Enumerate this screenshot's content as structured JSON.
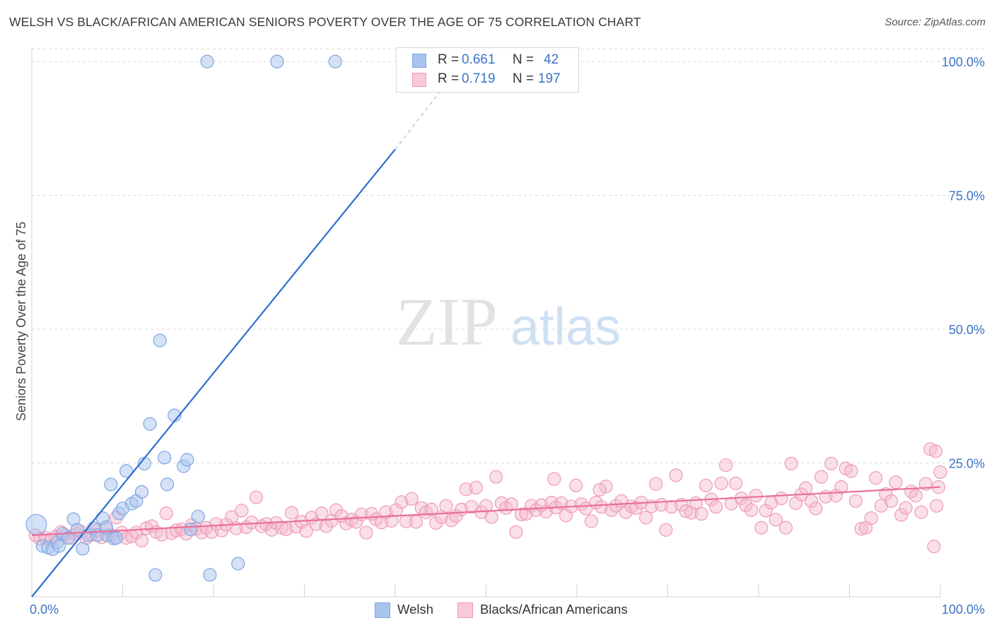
{
  "title": "WELSH VS BLACK/AFRICAN AMERICAN SENIORS POVERTY OVER THE AGE OF 75 CORRELATION CHART",
  "source": "Source: ZipAtlas.com",
  "watermark": {
    "zip": "ZIP",
    "atlas": "atlas"
  },
  "legend": {
    "welsh": {
      "r_label": "R =",
      "r_value": "0.661",
      "n_label": "N =",
      "n_value": "42"
    },
    "black": {
      "r_label": "R =",
      "r_value": "0.719",
      "n_label": "N =",
      "n_value": "197"
    }
  },
  "bottom_legend": {
    "welsh": "Welsh",
    "black": "Blacks/African Americans"
  },
  "colors": {
    "welsh_fill": "#a9c4ee",
    "welsh_stroke": "#7fa6e3",
    "welsh_line": "#2f6fd0",
    "black_fill": "#f5b8cb",
    "black_stroke": "#f09ab4",
    "black_line": "#e8709a",
    "tick_label": "#3b73c9",
    "grid": "#d9d9d9"
  },
  "chart_data": {
    "type": "scatter",
    "title": "WELSH VS BLACK/AFRICAN AMERICAN SENIORS POVERTY OVER THE AGE OF 75 CORRELATION CHART",
    "xlabel": "",
    "ylabel": "Seniors Poverty Over the Age of 75",
    "xlim": [
      0,
      100
    ],
    "ylim": [
      0,
      102
    ],
    "x_tick_labels": [
      "0.0%",
      "100.0%"
    ],
    "y_ticks": [
      25,
      50,
      75,
      100
    ],
    "y_tick_labels": [
      "25.0%",
      "50.0%",
      "75.0%",
      "100.0%"
    ],
    "grid": true,
    "series": [
      {
        "name": "Welsh",
        "R": 0.661,
        "N": 42,
        "trend": {
          "x0": 0,
          "y0": 0,
          "x1": 40,
          "y1": 83.6,
          "dashed_to_x": 45,
          "dashed_to_y": 94.5
        },
        "points": [
          [
            0.5,
            13.5,
            1.6
          ],
          [
            1.2,
            9.5,
            1
          ],
          [
            1.8,
            9.2,
            1
          ],
          [
            2.3,
            8.9,
            1
          ],
          [
            2.8,
            10.2,
            1
          ],
          [
            3.4,
            11.8,
            1
          ],
          [
            4.0,
            11.0,
            1
          ],
          [
            4.6,
            14.5,
            1
          ],
          [
            5.0,
            12.5,
            1
          ],
          [
            5.6,
            9.0,
            1
          ],
          [
            6.2,
            11.5,
            1
          ],
          [
            6.8,
            12.8,
            1
          ],
          [
            7.2,
            11.5,
            1
          ],
          [
            7.8,
            14.7,
            1
          ],
          [
            8.3,
            11.5,
            1
          ],
          [
            8.7,
            21.0,
            1
          ],
          [
            9.0,
            10.9,
            1
          ],
          [
            9.3,
            11.0,
            1
          ],
          [
            9.6,
            15.6,
            1
          ],
          [
            10.0,
            16.5,
            1
          ],
          [
            10.4,
            23.5,
            1
          ],
          [
            11.0,
            17.4,
            1
          ],
          [
            11.5,
            17.9,
            1
          ],
          [
            12.1,
            19.6,
            1
          ],
          [
            12.4,
            24.9,
            1
          ],
          [
            13.0,
            32.3,
            1
          ],
          [
            13.6,
            4.1,
            1
          ],
          [
            14.1,
            47.9,
            1
          ],
          [
            14.6,
            26.0,
            1
          ],
          [
            14.9,
            21.0,
            1
          ],
          [
            16.7,
            24.4,
            1
          ],
          [
            17.1,
            25.6,
            1
          ],
          [
            17.5,
            12.6,
            1
          ],
          [
            18.3,
            15.0,
            1
          ],
          [
            19.3,
            100,
            1
          ],
          [
            19.6,
            4.1,
            1
          ],
          [
            22.7,
            6.2,
            1
          ],
          [
            27.0,
            100,
            1
          ],
          [
            33.4,
            100,
            1
          ],
          [
            15.7,
            33.9,
            1
          ],
          [
            8.2,
            13.0,
            1
          ],
          [
            3.0,
            9.5,
            1
          ]
        ]
      },
      {
        "name": "Blacks/African Americans",
        "R": 0.719,
        "N": 197,
        "trend": {
          "x0": 0,
          "y0": 11.5,
          "x1": 100,
          "y1": 20.5
        },
        "points": [
          [
            0.4,
            11.5
          ],
          [
            0.9,
            10.8
          ],
          [
            1.5,
            11.0
          ],
          [
            2.1,
            10.6
          ],
          [
            2.6,
            11.2
          ],
          [
            3.2,
            12.1
          ],
          [
            3.7,
            11.5
          ],
          [
            4.3,
            11.0
          ],
          [
            4.9,
            11.8
          ],
          [
            5.4,
            12.2
          ],
          [
            6.0,
            11.0
          ],
          [
            6.6,
            11.6
          ],
          [
            7.1,
            12.4
          ],
          [
            7.7,
            11.1
          ],
          [
            8.2,
            12.7
          ],
          [
            8.8,
            11.5
          ],
          [
            9.3,
            14.8
          ],
          [
            9.9,
            12.0
          ],
          [
            10.4,
            11.0
          ],
          [
            11.0,
            11.3
          ],
          [
            11.5,
            12.0
          ],
          [
            12.1,
            10.5
          ],
          [
            12.6,
            12.8
          ],
          [
            13.2,
            13.2
          ],
          [
            13.7,
            12.1
          ],
          [
            14.3,
            11.6
          ],
          [
            14.8,
            15.6
          ],
          [
            15.4,
            11.9
          ],
          [
            15.9,
            12.4
          ],
          [
            16.5,
            12.6
          ],
          [
            17.0,
            11.8
          ],
          [
            17.6,
            13.4
          ],
          [
            18.1,
            12.7
          ],
          [
            18.7,
            12.0
          ],
          [
            19.2,
            12.9
          ],
          [
            19.8,
            12.1
          ],
          [
            20.3,
            13.6
          ],
          [
            20.9,
            12.4
          ],
          [
            21.4,
            13.5
          ],
          [
            22.0,
            14.9
          ],
          [
            22.5,
            12.8
          ],
          [
            23.1,
            16.1
          ],
          [
            23.6,
            13.0
          ],
          [
            24.2,
            13.9
          ],
          [
            24.7,
            18.6
          ],
          [
            25.3,
            13.2
          ],
          [
            25.8,
            13.6
          ],
          [
            26.4,
            12.5
          ],
          [
            26.9,
            13.8
          ],
          [
            27.5,
            12.9
          ],
          [
            28.0,
            12.6
          ],
          [
            28.6,
            15.7
          ],
          [
            29.1,
            13.1
          ],
          [
            29.7,
            14.0
          ],
          [
            30.2,
            12.3
          ],
          [
            30.8,
            14.8
          ],
          [
            31.3,
            13.6
          ],
          [
            31.9,
            15.6
          ],
          [
            32.4,
            13.2
          ],
          [
            33.0,
            14.2
          ],
          [
            33.5,
            16.2
          ],
          [
            34.1,
            15.1
          ],
          [
            34.6,
            13.7
          ],
          [
            35.2,
            14.4
          ],
          [
            35.7,
            14.0
          ],
          [
            36.3,
            15.4
          ],
          [
            36.8,
            12.0
          ],
          [
            37.4,
            15.5
          ],
          [
            37.9,
            14.5
          ],
          [
            38.5,
            13.9
          ],
          [
            39.0,
            15.8
          ],
          [
            39.6,
            14.2
          ],
          [
            40.1,
            16.2
          ],
          [
            40.7,
            17.7
          ],
          [
            41.2,
            14.1
          ],
          [
            41.8,
            18.3
          ],
          [
            42.3,
            14.0
          ],
          [
            42.9,
            16.6
          ],
          [
            43.4,
            15.8
          ],
          [
            44.0,
            16.3
          ],
          [
            44.5,
            13.8
          ],
          [
            45.1,
            14.9
          ],
          [
            45.6,
            17.0
          ],
          [
            46.2,
            14.3
          ],
          [
            46.7,
            15.1
          ],
          [
            47.3,
            16.3
          ],
          [
            47.8,
            20.1
          ],
          [
            48.4,
            16.8
          ],
          [
            48.9,
            20.4
          ],
          [
            49.5,
            15.8
          ],
          [
            50.0,
            17.0
          ],
          [
            50.6,
            14.9
          ],
          [
            51.1,
            22.4
          ],
          [
            51.7,
            17.5
          ],
          [
            52.2,
            16.6
          ],
          [
            52.8,
            17.3
          ],
          [
            53.3,
            12.1
          ],
          [
            53.9,
            15.4
          ],
          [
            54.4,
            15.5
          ],
          [
            55.0,
            17.0
          ],
          [
            55.5,
            16.2
          ],
          [
            56.1,
            17.1
          ],
          [
            56.6,
            15.9
          ],
          [
            57.2,
            17.6
          ],
          [
            57.7,
            16.7
          ],
          [
            58.3,
            17.5
          ],
          [
            58.8,
            15.2
          ],
          [
            59.4,
            16.9
          ],
          [
            59.9,
            20.8
          ],
          [
            60.5,
            17.3
          ],
          [
            61.0,
            16.5
          ],
          [
            61.6,
            14.1
          ],
          [
            62.1,
            17.6
          ],
          [
            62.7,
            16.8
          ],
          [
            63.2,
            20.6
          ],
          [
            63.8,
            16.2
          ],
          [
            64.3,
            17.0
          ],
          [
            64.9,
            17.9
          ],
          [
            65.4,
            15.8
          ],
          [
            66.0,
            16.9
          ],
          [
            66.5,
            16.6
          ],
          [
            67.1,
            17.6
          ],
          [
            67.6,
            14.8
          ],
          [
            68.2,
            16.9
          ],
          [
            68.7,
            21.1
          ],
          [
            69.3,
            17.2
          ],
          [
            69.8,
            12.5
          ],
          [
            70.4,
            16.8
          ],
          [
            70.9,
            22.7
          ],
          [
            71.5,
            17.2
          ],
          [
            72.0,
            16.0
          ],
          [
            72.6,
            15.7
          ],
          [
            73.1,
            17.5
          ],
          [
            73.7,
            15.5
          ],
          [
            74.2,
            20.8
          ],
          [
            74.8,
            18.2
          ],
          [
            75.3,
            16.8
          ],
          [
            75.9,
            21.2
          ],
          [
            76.4,
            24.6
          ],
          [
            77.0,
            17.4
          ],
          [
            77.5,
            21.2
          ],
          [
            78.1,
            18.4
          ],
          [
            78.6,
            17.1
          ],
          [
            79.2,
            16.2
          ],
          [
            79.7,
            18.9
          ],
          [
            80.3,
            12.9
          ],
          [
            80.8,
            16.1
          ],
          [
            81.4,
            17.6
          ],
          [
            81.9,
            14.4
          ],
          [
            82.5,
            18.4
          ],
          [
            83.0,
            12.9
          ],
          [
            83.6,
            24.9
          ],
          [
            84.1,
            17.5
          ],
          [
            84.7,
            19.1
          ],
          [
            85.2,
            20.3
          ],
          [
            85.8,
            17.9
          ],
          [
            86.3,
            16.5
          ],
          [
            86.9,
            22.4
          ],
          [
            87.4,
            18.7
          ],
          [
            88.0,
            24.9
          ],
          [
            88.5,
            18.9
          ],
          [
            89.1,
            20.5
          ],
          [
            89.6,
            24.0
          ],
          [
            90.2,
            23.5
          ],
          [
            90.7,
            17.9
          ],
          [
            91.3,
            12.7
          ],
          [
            91.8,
            12.9
          ],
          [
            92.4,
            14.7
          ],
          [
            92.9,
            22.2
          ],
          [
            93.5,
            17.0
          ],
          [
            94.0,
            19.2
          ],
          [
            94.6,
            17.9
          ],
          [
            95.1,
            21.4
          ],
          [
            95.7,
            15.3
          ],
          [
            96.2,
            16.6
          ],
          [
            96.8,
            19.7
          ],
          [
            97.3,
            18.9
          ],
          [
            97.9,
            15.8
          ],
          [
            98.4,
            21.1
          ],
          [
            98.9,
            27.6
          ],
          [
            99.3,
            9.4
          ],
          [
            99.6,
            17.0
          ],
          [
            99.8,
            20.5
          ],
          [
            100.0,
            23.3
          ],
          [
            99.5,
            27.2
          ],
          [
            57.5,
            22.0
          ],
          [
            62.5,
            20.0
          ]
        ]
      }
    ]
  }
}
